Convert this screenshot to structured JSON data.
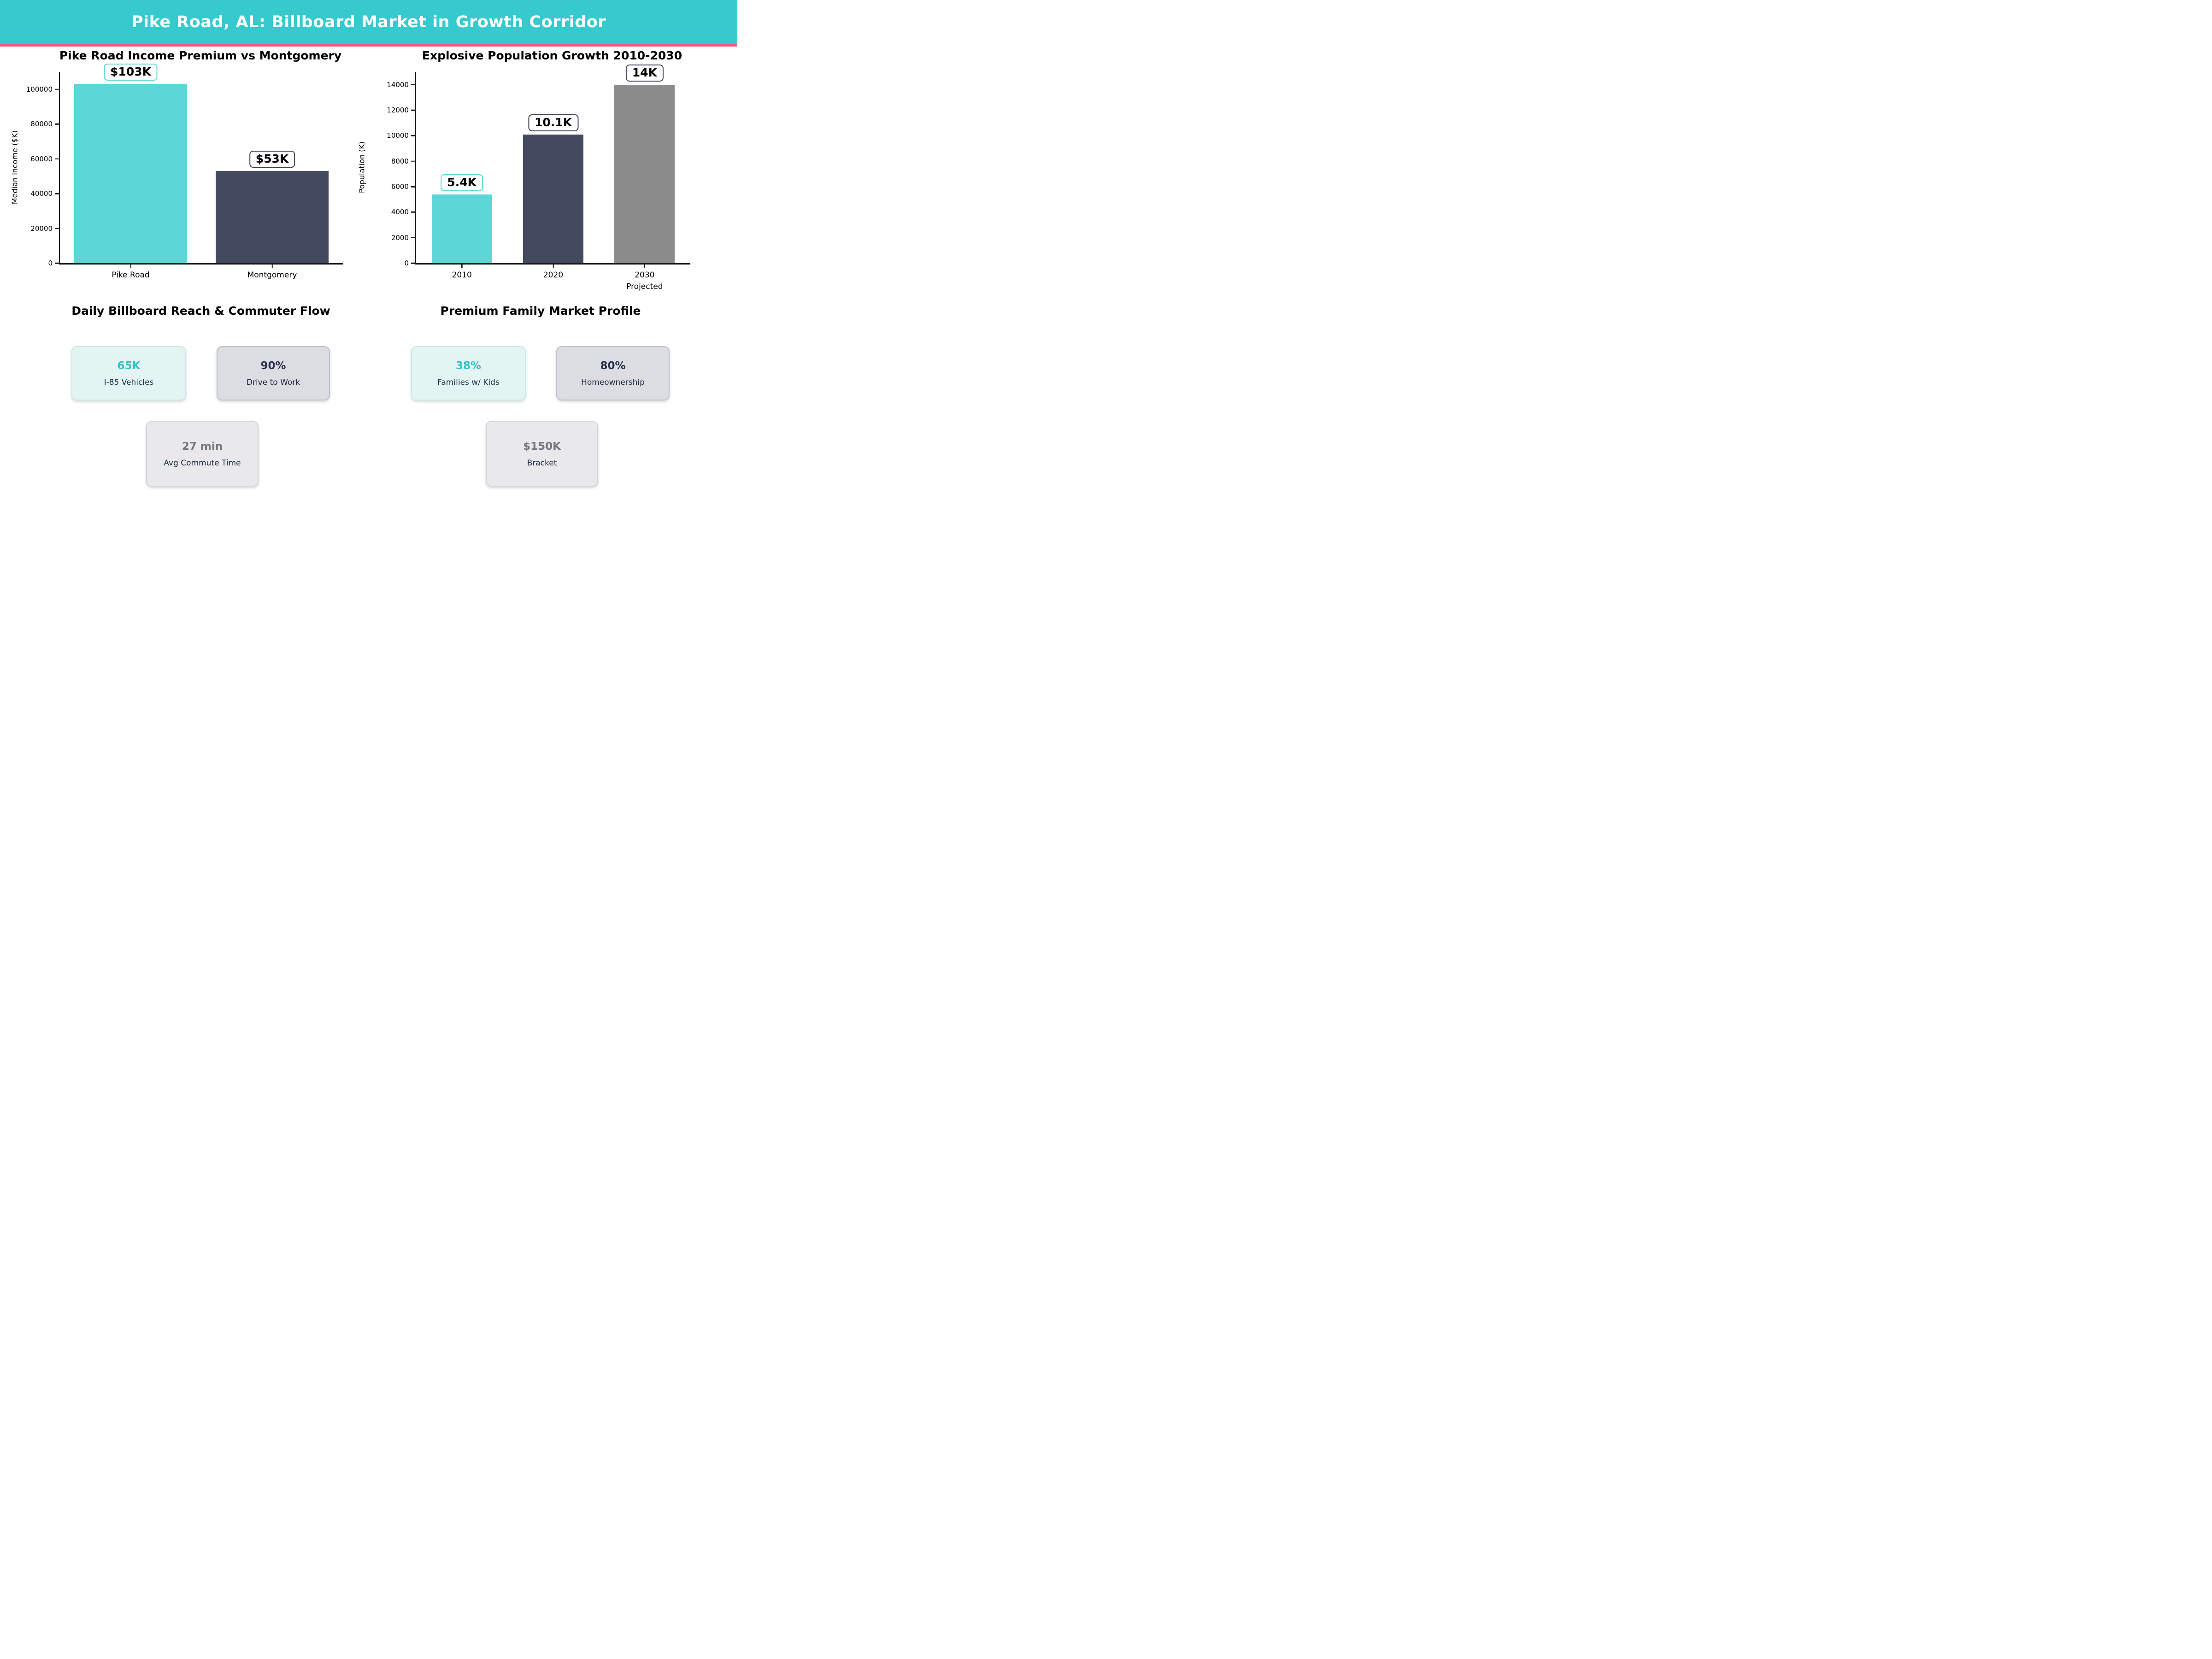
{
  "header": {
    "title": "Pike Road, AL: Billboard Market in Growth Corridor",
    "bg_color": "#36c9cd",
    "divider_color": "#eb5e77",
    "text_color": "#ffffff"
  },
  "chart_data": [
    {
      "type": "bar",
      "title": "Pike Road Income Premium vs Montgomery",
      "ylabel": "Median Income ($K)",
      "xlabel": "",
      "categories": [
        "Pike Road",
        "Montgomery"
      ],
      "values": [
        103000,
        53000
      ],
      "bar_labels": [
        "$103K",
        "$53K"
      ],
      "bar_colors": [
        "#5cd6d6",
        "#434a60"
      ],
      "label_border_colors": [
        "#5cd6d6",
        "#3c4358"
      ],
      "ylim": [
        0,
        110000
      ],
      "yticks": [
        0,
        20000,
        40000,
        60000,
        80000,
        100000
      ],
      "bar_frac": 0.8,
      "grid": false,
      "legend": null
    },
    {
      "type": "bar",
      "title": "Explosive Population Growth 2010-2030",
      "ylabel": "Population (K)",
      "xlabel": "",
      "categories": [
        "2010",
        "2020",
        "2030\nProjected"
      ],
      "values": [
        5400,
        10100,
        14000
      ],
      "bar_labels": [
        "5.4K",
        "10.1K",
        "14K"
      ],
      "bar_colors": [
        "#5cd6d6",
        "#434a60",
        "#8b8b8b"
      ],
      "label_border_colors": [
        "#5cd6d6",
        "#3c4358",
        "#3c4358"
      ],
      "ylim": [
        0,
        15000
      ],
      "yticks": [
        0,
        2000,
        4000,
        6000,
        8000,
        10000,
        12000,
        14000
      ],
      "bar_frac": 0.66,
      "grid": false,
      "legend": null
    }
  ],
  "sections": [
    {
      "title": "Daily Billboard Reach & Commuter Flow",
      "cards": [
        {
          "value": "65K",
          "label": "I-85 Vehicles",
          "value_color": "#35c0c4",
          "bg": "#e2f5f3",
          "border": "#c9e9e7"
        },
        {
          "value": "90%",
          "label": "Drive to Work",
          "value_color": "#272f4e",
          "bg": "#dcdde3",
          "border": "#bfc0ca"
        },
        {
          "value": "27 min",
          "label": "Avg Commute Time",
          "value_color": "#76777c",
          "bg": "#e9e9eb",
          "border": "#d4d4d6"
        }
      ]
    },
    {
      "title": "Premium Family Market Profile",
      "cards": [
        {
          "value": "38%",
          "label": "Families w/ Kids",
          "value_color": "#35c0c4",
          "bg": "#e2f5f3",
          "border": "#c9e9e7"
        },
        {
          "value": "80%",
          "label": "Homeownership",
          "value_color": "#272f4e",
          "bg": "#dcdde3",
          "border": "#bfc0ca"
        },
        {
          "value": "$150K",
          "label": "Bracket",
          "value_color": "#76777c",
          "bg": "#e9e9eb",
          "border": "#d4d4d6"
        }
      ]
    }
  ]
}
